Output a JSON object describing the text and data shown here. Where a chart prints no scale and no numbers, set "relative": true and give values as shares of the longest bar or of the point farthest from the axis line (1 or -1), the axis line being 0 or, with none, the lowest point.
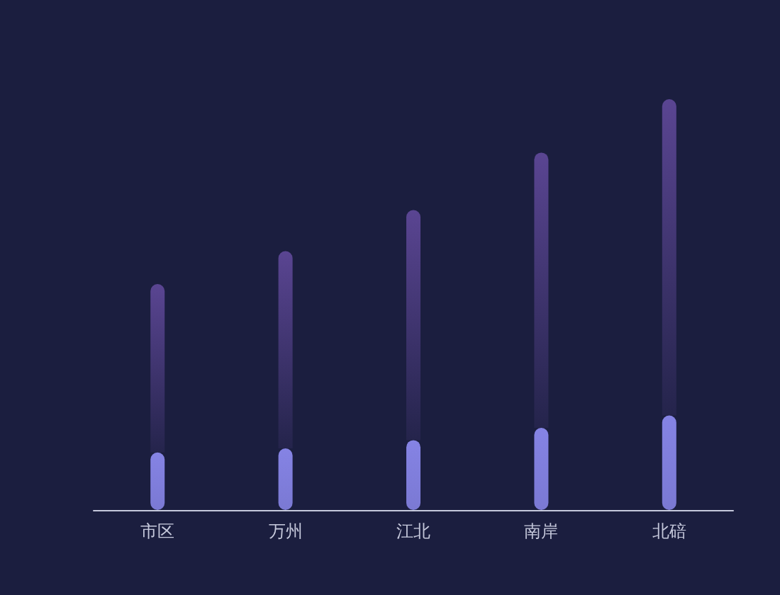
{
  "chart_data": {
    "type": "bar",
    "relative": true,
    "stacked": true,
    "categories": [
      "市区",
      "万州",
      "江北",
      "南岸",
      "北碚"
    ],
    "series": [
      {
        "color": "#8583e4",
        "values": [
          0.14,
          0.15,
          0.17,
          0.2,
          0.23
        ]
      },
      {
        "color": "#5a4592",
        "values": [
          0.41,
          0.48,
          0.56,
          0.67,
          0.77
        ]
      }
    ]
  }
}
